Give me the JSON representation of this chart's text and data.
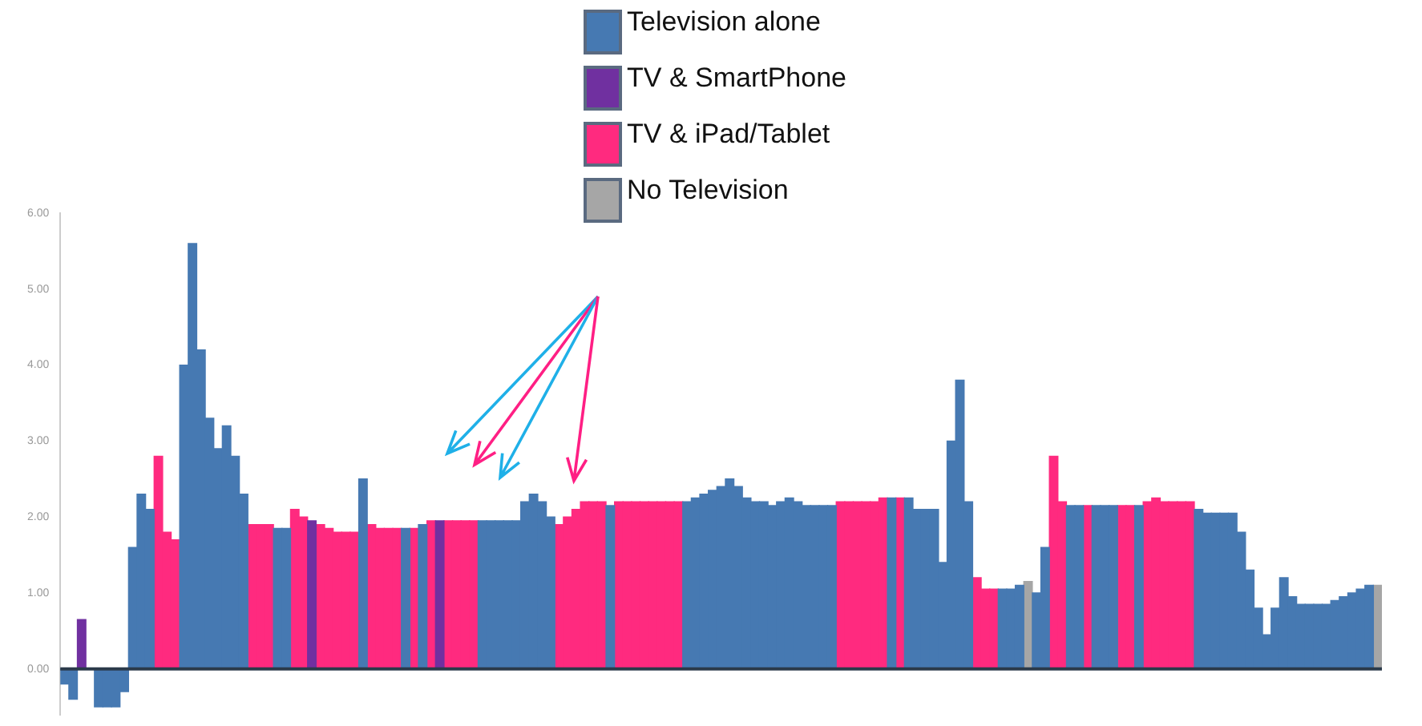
{
  "chart_data": {
    "type": "bar",
    "legend": "top",
    "tick_labels": "y",
    "grid": false,
    "ref_lines": [
      {
        "axis": "y",
        "value": 0,
        "color": "#2b3a4a"
      }
    ],
    "categories": [
      null,
      null,
      null,
      null,
      null,
      null,
      null,
      null,
      null,
      null,
      null,
      null,
      null,
      null,
      null,
      null,
      null,
      null,
      null,
      null,
      null,
      null,
      null,
      null,
      null,
      null,
      null,
      null,
      null,
      null,
      null,
      null,
      null,
      null,
      null,
      null,
      null,
      null,
      null,
      null,
      null,
      null,
      null,
      null,
      null,
      null,
      null,
      null,
      null,
      null,
      null,
      null,
      null,
      null,
      null,
      null,
      null,
      null,
      null,
      null,
      null,
      null,
      null,
      null,
      null,
      null,
      null,
      null,
      null,
      null,
      null,
      null,
      null,
      null,
      null,
      null,
      null,
      null,
      null,
      null,
      null,
      null,
      null,
      null,
      null,
      null,
      null,
      null,
      null,
      null,
      null,
      null,
      null,
      null,
      null,
      null,
      null,
      null,
      null,
      null,
      null,
      null,
      null,
      null,
      null,
      null,
      null,
      null,
      null,
      null,
      null,
      null,
      null,
      null,
      null,
      null,
      null,
      null,
      null,
      null,
      null,
      null,
      null,
      null,
      null,
      null,
      null,
      null,
      null,
      null,
      null,
      null,
      null,
      null,
      null,
      null,
      null,
      null,
      null,
      null,
      null,
      null,
      null,
      null,
      null,
      null,
      null,
      null,
      null,
      null,
      null,
      null,
      null,
      null,
      null
    ],
    "ylim": [
      -0.6,
      6
    ],
    "yticks": [
      {
        "value": 0,
        "label": "0.00"
      },
      {
        "value": 1,
        "label": "1.00"
      },
      {
        "value": 2,
        "label": "2.00"
      },
      {
        "value": 3,
        "label": "3.00"
      },
      {
        "value": 4,
        "label": "4.00"
      },
      {
        "value": 5,
        "label": "5.00"
      },
      {
        "value": 6,
        "label": "6.00"
      }
    ],
    "series": [
      {
        "name": "Television alone",
        "color": "#4679b2",
        "values": [
          -0.2,
          -0.4,
          null,
          null,
          -0.5,
          -0.5,
          -0.5,
          -0.3,
          1.6,
          2.3,
          2.1,
          null,
          null,
          null,
          4.0,
          5.6,
          4.2,
          3.3,
          2.9,
          3.2,
          2.8,
          2.3,
          null,
          null,
          null,
          1.85,
          1.85,
          null,
          null,
          null,
          null,
          null,
          null,
          null,
          null,
          2.5,
          null,
          null,
          null,
          null,
          1.85,
          null,
          1.9,
          null,
          null,
          null,
          null,
          null,
          null,
          1.95,
          1.95,
          1.95,
          1.95,
          1.95,
          2.2,
          2.3,
          2.2,
          2.0,
          null,
          null,
          null,
          null,
          null,
          null,
          2.15,
          null,
          null,
          null,
          null,
          null,
          null,
          null,
          null,
          2.2,
          2.25,
          2.3,
          2.35,
          2.4,
          2.5,
          2.4,
          2.25,
          2.2,
          2.2,
          2.15,
          2.2,
          2.25,
          2.2,
          2.15,
          2.15,
          2.15,
          2.15,
          null,
          null,
          null,
          null,
          null,
          null,
          2.25,
          null,
          2.25,
          2.1,
          2.1,
          2.1,
          1.4,
          3.0,
          3.8,
          2.2,
          null,
          null,
          null,
          1.05,
          1.05,
          1.1,
          null,
          1.0,
          1.6,
          null,
          null,
          2.15,
          2.15,
          null,
          2.15,
          2.15,
          2.15,
          null,
          null,
          2.15,
          null,
          null,
          null,
          null,
          null,
          null,
          2.1,
          2.05,
          2.05,
          2.05,
          2.05,
          1.8,
          1.3,
          0.8,
          0.45,
          0.8,
          1.2,
          0.95,
          0.85,
          0.85,
          0.85,
          0.85,
          0.9,
          0.95,
          1.0,
          1.05,
          1.1,
          null
        ]
      },
      {
        "name": "TV & SmartPhone",
        "color": "#7030a0",
        "values": [
          null,
          null,
          0.65,
          null,
          null,
          null,
          null,
          null,
          null,
          null,
          null,
          null,
          null,
          null,
          null,
          null,
          null,
          null,
          null,
          null,
          null,
          null,
          null,
          null,
          null,
          null,
          null,
          null,
          null,
          1.95,
          null,
          null,
          null,
          null,
          null,
          null,
          null,
          null,
          null,
          null,
          null,
          null,
          null,
          null,
          1.95,
          null,
          null,
          null,
          null,
          null,
          null,
          null,
          null,
          null,
          null,
          null,
          null,
          null,
          null,
          null,
          null,
          null,
          null,
          null,
          null,
          null,
          null,
          null,
          null,
          null,
          null,
          null,
          null,
          null,
          null,
          null,
          null,
          null,
          null,
          null,
          null,
          null,
          null,
          null,
          null,
          null,
          null,
          null,
          null,
          null,
          null,
          null,
          null,
          null,
          null,
          null,
          null,
          null,
          null,
          null,
          null,
          null,
          null,
          null,
          null,
          null,
          null,
          null,
          null,
          null,
          null,
          null,
          null,
          null,
          null,
          null,
          null,
          null,
          null,
          null,
          null,
          null,
          null,
          null,
          null,
          null,
          null,
          null,
          null,
          null,
          null,
          null,
          null,
          null,
          null,
          null,
          null,
          null,
          null,
          null,
          null,
          null,
          null,
          null,
          null,
          null,
          null,
          null,
          null,
          null,
          null,
          null,
          null,
          null,
          null
        ]
      },
      {
        "name": "TV & iPad/Tablet",
        "color": "#ff2a7f",
        "values": [
          null,
          null,
          null,
          null,
          null,
          null,
          null,
          null,
          null,
          null,
          null,
          2.8,
          1.8,
          1.7,
          null,
          null,
          null,
          null,
          null,
          null,
          null,
          null,
          1.9,
          1.9,
          1.9,
          null,
          null,
          2.1,
          2.0,
          null,
          1.9,
          1.85,
          1.8,
          1.8,
          1.8,
          null,
          1.9,
          1.85,
          1.85,
          1.85,
          null,
          1.85,
          null,
          1.95,
          null,
          1.95,
          1.95,
          1.95,
          1.95,
          null,
          null,
          null,
          null,
          null,
          null,
          null,
          null,
          null,
          1.9,
          2.0,
          2.1,
          2.2,
          2.2,
          2.2,
          null,
          2.2,
          2.2,
          2.2,
          2.2,
          2.2,
          2.2,
          2.2,
          2.2,
          null,
          null,
          null,
          null,
          null,
          null,
          null,
          null,
          null,
          null,
          null,
          null,
          null,
          null,
          null,
          null,
          null,
          null,
          2.2,
          2.2,
          2.2,
          2.2,
          2.2,
          2.25,
          null,
          2.25,
          null,
          null,
          null,
          null,
          null,
          null,
          null,
          null,
          1.2,
          1.05,
          1.05,
          null,
          null,
          null,
          null,
          null,
          null,
          2.8,
          2.2,
          null,
          null,
          2.15,
          null,
          null,
          null,
          2.15,
          2.15,
          null,
          2.2,
          2.25,
          2.2,
          2.2,
          2.2,
          2.2,
          null,
          null,
          null,
          null,
          null,
          null,
          null,
          null,
          null,
          null,
          null,
          null,
          null,
          null,
          null,
          null,
          null,
          null,
          null,
          null,
          null,
          null
        ]
      },
      {
        "name": "No Television",
        "color": "#a6a6a6",
        "values": [
          null,
          null,
          null,
          null,
          null,
          null,
          null,
          null,
          null,
          null,
          null,
          null,
          null,
          null,
          null,
          null,
          null,
          null,
          null,
          null,
          null,
          null,
          null,
          null,
          null,
          null,
          null,
          null,
          null,
          null,
          null,
          null,
          null,
          null,
          null,
          null,
          null,
          null,
          null,
          null,
          null,
          null,
          null,
          null,
          null,
          null,
          null,
          null,
          null,
          null,
          null,
          null,
          null,
          null,
          null,
          null,
          null,
          null,
          null,
          null,
          null,
          null,
          null,
          null,
          null,
          null,
          null,
          null,
          null,
          null,
          null,
          null,
          null,
          null,
          null,
          null,
          null,
          null,
          null,
          null,
          null,
          null,
          null,
          null,
          null,
          null,
          null,
          null,
          null,
          null,
          null,
          null,
          null,
          null,
          null,
          null,
          null,
          null,
          null,
          null,
          null,
          null,
          null,
          null,
          null,
          null,
          null,
          null,
          null,
          null,
          null,
          null,
          null,
          1.15,
          null,
          null,
          null,
          null,
          null,
          null,
          null,
          null,
          null,
          null,
          null,
          null,
          null,
          null,
          null,
          null,
          null,
          null,
          null,
          null,
          null,
          null,
          null,
          null,
          null,
          null,
          null,
          null,
          null,
          null,
          null,
          null,
          null,
          null,
          null,
          null,
          null,
          null,
          null,
          null,
          1.1
        ]
      }
    ]
  }
}
